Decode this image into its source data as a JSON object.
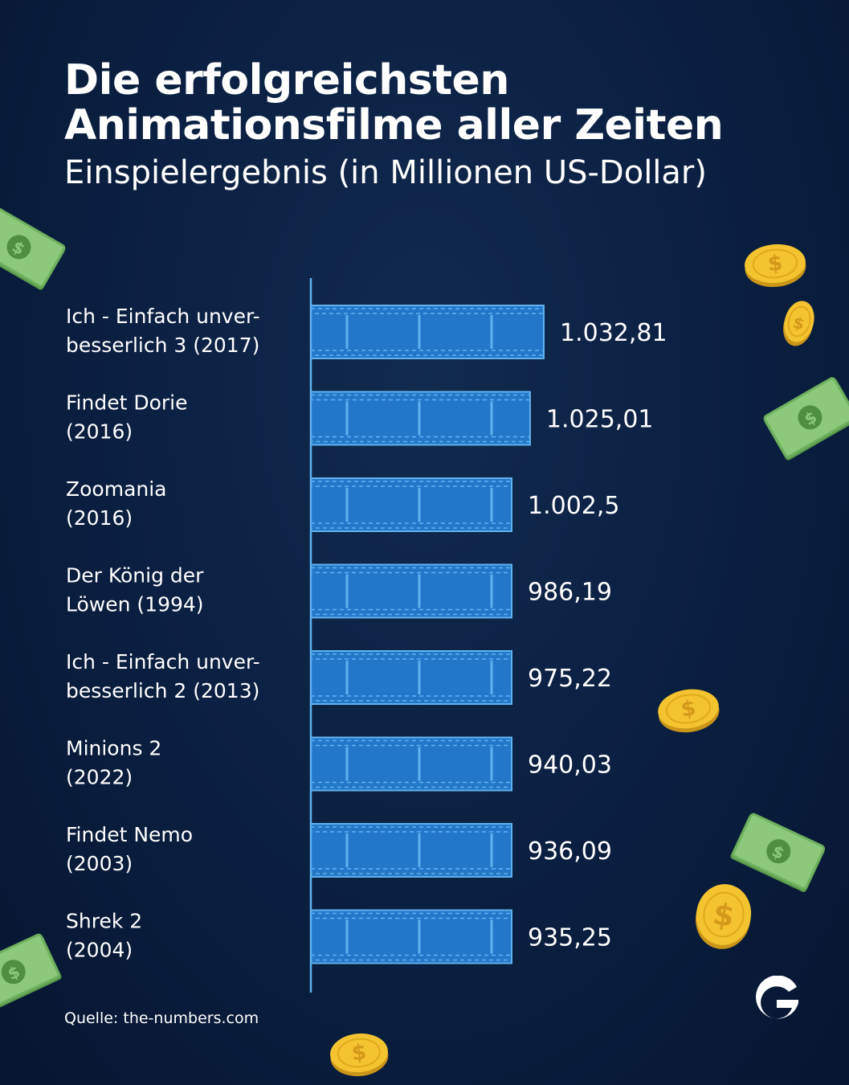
{
  "title": "Die erfolgreichsten Animationsfilme aller Zeiten",
  "subtitle": "Einspielergebnis (in Millionen US-Dollar)",
  "source": "Quelle: the-numbers.com",
  "colors": {
    "background": "#0a1f40",
    "bar_fill": "#2377c8",
    "bar_border": "#5fb2f0",
    "axis": "#5fb2f0",
    "text": "#ffffff",
    "coin": "#f4c430",
    "bill": "#8dc97a"
  },
  "decorations": [
    "dollar-bill-icon",
    "gold-coin-icon",
    "brand-logo-g"
  ],
  "chart_data": {
    "type": "bar",
    "orientation": "horizontal",
    "bar_style": "film-strip",
    "categories": [
      [
        "Ich - Einfach unver-",
        "besserlich 3 (2017)"
      ],
      [
        "Findet Dorie",
        "(2016)"
      ],
      [
        "Zoomania",
        "(2016)"
      ],
      [
        "Der König der",
        "Löwen (1994)"
      ],
      [
        "Ich - Einfach unver-",
        "besserlich 2 (2013)"
      ],
      [
        "Minions 2",
        "(2022)"
      ],
      [
        "Findet Nemo",
        "(2003)"
      ],
      [
        "Shrek 2",
        "(2004)"
      ]
    ],
    "values": [
      1032.81,
      1025.01,
      1002.5,
      986.19,
      975.22,
      940.03,
      936.09,
      935.25
    ],
    "value_labels": [
      "1.032,81",
      "1.025,01",
      "1.002,5",
      "986,19",
      "975,22",
      "940,03",
      "936,09",
      "935,25"
    ],
    "xlim": [
      0,
      1032.81
    ],
    "grid": false,
    "legend": "none"
  }
}
